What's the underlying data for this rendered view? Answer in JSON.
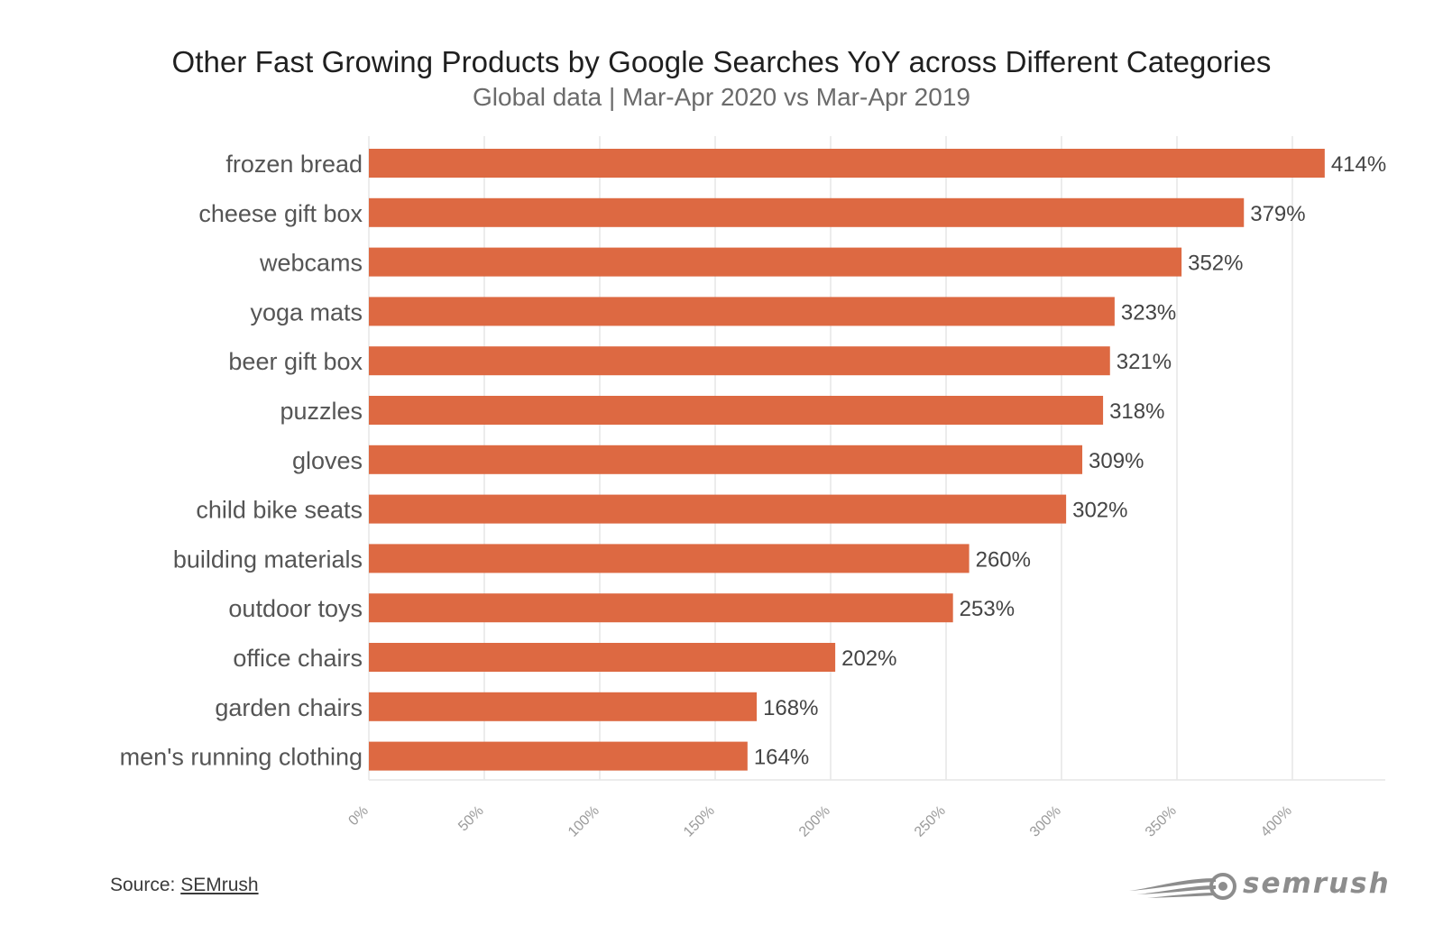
{
  "header": {
    "title": "Other Fast Growing Products by Google Searches YoY across Different Categories",
    "subtitle": "Global data | Mar-Apr 2020 vs Mar-Apr 2019"
  },
  "footer": {
    "source_prefix": "Source: ",
    "source_link": "SEMrush",
    "logo_text": "semrush"
  },
  "colors": {
    "bar": "#dd6942",
    "grid": "#e6e6e6",
    "category_label": "#555555",
    "value_label": "#444444",
    "tick_label": "#9a9a9a"
  },
  "chart_data": {
    "type": "bar",
    "orientation": "horizontal",
    "title": "Other Fast Growing Products by Google Searches YoY across Different Categories",
    "subtitle": "Global data | Mar-Apr 2020 vs Mar-Apr 2019",
    "categories": [
      "frozen bread",
      "cheese gift box",
      "webcams",
      "yoga mats",
      "beer gift box",
      "puzzles",
      "gloves",
      "child bike seats",
      "building materials",
      "outdoor toys",
      "office chairs",
      "garden chairs",
      "men's running clothing"
    ],
    "values": [
      414,
      379,
      352,
      323,
      321,
      318,
      309,
      302,
      260,
      253,
      202,
      168,
      164
    ],
    "value_labels": [
      "414%",
      "379%",
      "352%",
      "323%",
      "321%",
      "318%",
      "309%",
      "302%",
      "260%",
      "253%",
      "202%",
      "168%",
      "164%"
    ],
    "xticks": [
      0,
      50,
      100,
      150,
      200,
      250,
      300,
      350,
      400
    ],
    "xtick_labels": [
      "0%",
      "50%",
      "100%",
      "150%",
      "200%",
      "250%",
      "300%",
      "350%",
      "400%"
    ],
    "xlim": [
      0,
      440
    ],
    "xlabel": "",
    "ylabel": "",
    "grid": true,
    "legend": "none"
  }
}
